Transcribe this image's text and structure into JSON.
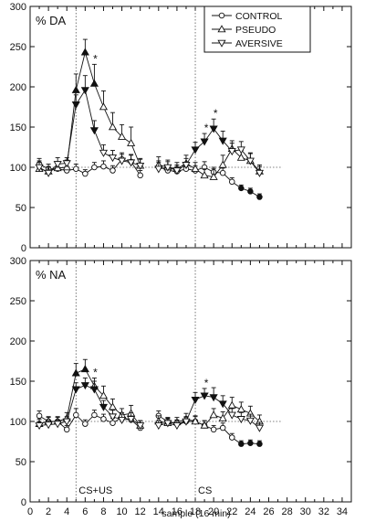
{
  "xlabel": "sample (16 min)",
  "chart_data": [
    {
      "type": "line",
      "ylabel": "% DA",
      "ylim": [
        0,
        300
      ],
      "yticks": [
        0,
        50,
        100,
        150,
        200,
        250,
        300
      ],
      "xlim": [
        0,
        35
      ],
      "xticks": [
        0,
        2,
        4,
        6,
        8,
        10,
        12,
        14,
        16,
        18,
        20,
        22,
        24,
        26,
        28,
        30,
        32,
        34
      ],
      "baseline": 100,
      "legend": {
        "placement": "top-right",
        "entries": [
          "CONTROL",
          "PSEUDO",
          "AVERSIVE"
        ]
      },
      "annotations": [
        {
          "text": "*",
          "x": 7.1
        },
        {
          "text": "*",
          "x": 19.2
        },
        {
          "text": "*",
          "x": 20.2
        }
      ],
      "series": [
        {
          "name": "CONTROL",
          "marker": "circle",
          "x": [
            1,
            2,
            3,
            4,
            5,
            6,
            7,
            8,
            9,
            10,
            11,
            12,
            14,
            15,
            16,
            17,
            18,
            19,
            20,
            21,
            22,
            23,
            24,
            25
          ],
          "values": [
            104,
            98,
            98,
            96,
            98,
            92,
            100,
            101,
            96,
            110,
            107,
            90,
            101,
            96,
            95,
            98,
            96,
            100,
            94,
            93,
            82,
            74,
            70,
            63
          ],
          "err": [
            7,
            6,
            6,
            5,
            6,
            5,
            6,
            7,
            6,
            8,
            9,
            6,
            7,
            6,
            6,
            6,
            6,
            7,
            6,
            6,
            5,
            4,
            4,
            4
          ],
          "filled": [
            false,
            false,
            false,
            false,
            false,
            false,
            false,
            false,
            false,
            false,
            false,
            false,
            false,
            false,
            false,
            false,
            false,
            false,
            false,
            false,
            false,
            true,
            true,
            true
          ]
        },
        {
          "name": "PSEUDO",
          "marker": "triangle-up",
          "x": [
            1,
            2,
            3,
            4,
            5,
            6,
            7,
            8,
            9,
            10,
            11,
            12,
            14,
            15,
            16,
            17,
            18,
            19,
            20,
            21,
            22,
            23,
            24,
            25
          ],
          "values": [
            98,
            95,
            99,
            100,
            196,
            243,
            204,
            175,
            150,
            138,
            130,
            102,
            103,
            100,
            98,
            105,
            98,
            90,
            88,
            103,
            123,
            112,
            108,
            95
          ],
          "err": [
            8,
            6,
            8,
            9,
            20,
            16,
            24,
            20,
            18,
            15,
            20,
            9,
            10,
            9,
            8,
            10,
            8,
            8,
            10,
            12,
            10,
            9,
            10,
            8
          ],
          "filled": [
            false,
            false,
            false,
            false,
            true,
            true,
            true,
            false,
            false,
            false,
            false,
            false,
            false,
            false,
            false,
            false,
            false,
            false,
            false,
            false,
            false,
            false,
            false,
            false
          ]
        },
        {
          "name": "AVERSIVE",
          "marker": "triangle-down",
          "x": [
            1,
            2,
            3,
            4,
            5,
            6,
            7,
            8,
            9,
            10,
            11,
            12,
            14,
            15,
            16,
            17,
            18,
            19,
            20,
            21,
            22,
            23,
            24,
            25
          ],
          "values": [
            100,
            93,
            104,
            105,
            178,
            196,
            146,
            118,
            112,
            108,
            106,
            102,
            98,
            100,
            96,
            103,
            122,
            132,
            148,
            133,
            120,
            122,
            108,
            93
          ],
          "err": [
            8,
            7,
            8,
            7,
            12,
            18,
            12,
            10,
            9,
            8,
            9,
            8,
            8,
            7,
            7,
            8,
            9,
            10,
            12,
            12,
            10,
            10,
            9,
            8
          ],
          "filled": [
            false,
            false,
            false,
            false,
            true,
            true,
            true,
            false,
            false,
            false,
            false,
            false,
            false,
            false,
            false,
            false,
            true,
            true,
            true,
            true,
            false,
            false,
            false,
            false
          ]
        }
      ]
    },
    {
      "type": "line",
      "ylabel": "% NA",
      "ylim": [
        0,
        300
      ],
      "yticks": [
        0,
        50,
        100,
        150,
        200,
        250,
        300
      ],
      "xlim": [
        0,
        35
      ],
      "xticks": [
        0,
        2,
        4,
        6,
        8,
        10,
        12,
        14,
        16,
        18,
        20,
        22,
        24,
        26,
        28,
        30,
        32,
        34
      ],
      "baseline": 100,
      "vertical_labels": [
        {
          "text": "CS+US",
          "x": 5
        },
        {
          "text": "CS",
          "x": 18
        }
      ],
      "annotations": [
        {
          "text": "*",
          "x": 7.1
        },
        {
          "text": "*",
          "x": 19.2
        }
      ],
      "series": [
        {
          "name": "CONTROL",
          "marker": "circle",
          "x": [
            1,
            2,
            3,
            4,
            5,
            6,
            7,
            8,
            9,
            10,
            11,
            12,
            14,
            15,
            16,
            17,
            18,
            19,
            20,
            21,
            22,
            23,
            24,
            25
          ],
          "values": [
            107,
            100,
            100,
            90,
            108,
            97,
            108,
            103,
            98,
            105,
            102,
            92,
            107,
            100,
            97,
            100,
            100,
            95,
            90,
            92,
            80,
            72,
            73,
            72
          ],
          "err": [
            6,
            5,
            5,
            5,
            8,
            5,
            6,
            6,
            6,
            6,
            6,
            5,
            6,
            5,
            5,
            5,
            6,
            6,
            5,
            6,
            5,
            4,
            4,
            4
          ],
          "filled": [
            false,
            false,
            false,
            false,
            false,
            false,
            false,
            false,
            false,
            false,
            false,
            false,
            false,
            false,
            false,
            false,
            false,
            false,
            false,
            false,
            false,
            true,
            true,
            true
          ]
        },
        {
          "name": "PSEUDO",
          "marker": "triangle-up",
          "x": [
            1,
            2,
            3,
            4,
            5,
            6,
            7,
            8,
            9,
            10,
            11,
            12,
            14,
            15,
            16,
            17,
            18,
            19,
            20,
            21,
            22,
            23,
            24,
            25
          ],
          "values": [
            97,
            100,
            100,
            104,
            160,
            165,
            144,
            132,
            118,
            108,
            110,
            95,
            100,
            98,
            99,
            103,
            100,
            95,
            108,
            104,
            120,
            115,
            110,
            100
          ],
          "err": [
            6,
            6,
            6,
            7,
            12,
            12,
            10,
            12,
            10,
            8,
            10,
            6,
            7,
            6,
            6,
            7,
            7,
            6,
            8,
            8,
            10,
            9,
            9,
            8
          ],
          "filled": [
            false,
            false,
            false,
            false,
            true,
            true,
            false,
            false,
            false,
            false,
            false,
            false,
            false,
            false,
            false,
            false,
            false,
            false,
            false,
            false,
            false,
            false,
            false,
            false
          ]
        },
        {
          "name": "AVERSIVE",
          "marker": "triangle-down",
          "x": [
            1,
            2,
            3,
            4,
            5,
            6,
            7,
            8,
            9,
            10,
            11,
            12,
            14,
            15,
            16,
            17,
            18,
            19,
            20,
            21,
            22,
            23,
            24,
            25
          ],
          "values": [
            95,
            96,
            97,
            100,
            140,
            145,
            140,
            118,
            106,
            102,
            103,
            95,
            95,
            98,
            95,
            100,
            127,
            132,
            130,
            122,
            108,
            103,
            101,
            92
          ],
          "err": [
            5,
            5,
            5,
            6,
            8,
            9,
            10,
            8,
            8,
            7,
            8,
            6,
            6,
            6,
            6,
            6,
            9,
            9,
            12,
            10,
            8,
            8,
            8,
            7
          ],
          "filled": [
            false,
            false,
            false,
            false,
            true,
            true,
            true,
            true,
            false,
            false,
            false,
            false,
            false,
            false,
            false,
            false,
            true,
            true,
            true,
            true,
            false,
            false,
            false,
            false
          ]
        }
      ]
    }
  ]
}
